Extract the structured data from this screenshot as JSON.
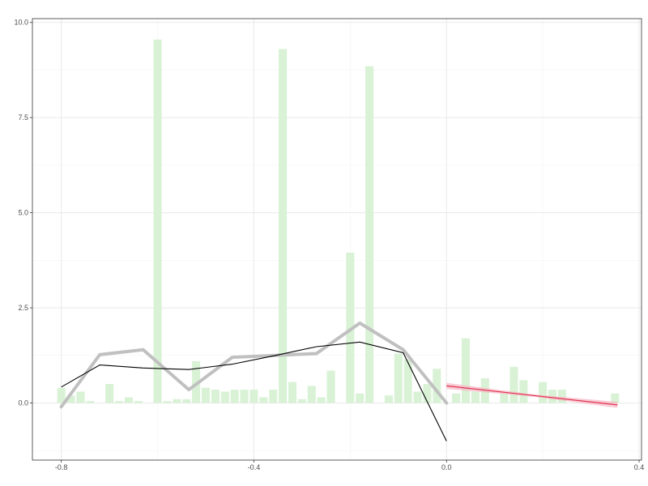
{
  "chart_data": {
    "type": "bar",
    "title": "",
    "xlabel": "",
    "ylabel": "",
    "xlim": [
      -0.86,
      0.405
    ],
    "ylim": [
      -1.5,
      10.1
    ],
    "x_ticks": [
      {
        "value": -0.8,
        "label": "-0.8"
      },
      {
        "value": -0.4,
        "label": "-0.4"
      },
      {
        "value": 0.0,
        "label": "0.0"
      },
      {
        "value": 0.4,
        "label": "0.4"
      }
    ],
    "y_ticks": [
      {
        "value": 0.0,
        "label": "0.0"
      },
      {
        "value": 2.5,
        "label": "2.5"
      },
      {
        "value": 5.0,
        "label": "5.0"
      },
      {
        "value": 7.5,
        "label": "7.5"
      },
      {
        "value": 10.0,
        "label": "10.0"
      }
    ],
    "grid": true,
    "bar_width": 0.017,
    "colors": {
      "bars": "#d9f2d6",
      "thick_line": "#c0c0c0",
      "black_line": "#000000",
      "red_line": "#e0334f",
      "red_band": "#f7b6c4",
      "grid": "#ebebeb",
      "panel_border": "#333333"
    },
    "series": [
      {
        "name": "bars",
        "type": "bar",
        "x": [
          -0.8,
          -0.78,
          -0.76,
          -0.74,
          -0.7,
          -0.68,
          -0.66,
          -0.64,
          -0.6,
          -0.58,
          -0.56,
          -0.54,
          -0.52,
          -0.5,
          -0.48,
          -0.46,
          -0.44,
          -0.42,
          -0.4,
          -0.38,
          -0.36,
          -0.34,
          -0.32,
          -0.3,
          -0.28,
          -0.26,
          -0.24,
          -0.2,
          -0.18,
          -0.16,
          -0.12,
          -0.1,
          -0.08,
          -0.06,
          -0.04,
          -0.02,
          0.02,
          0.04,
          0.06,
          0.08,
          0.12,
          0.14,
          0.16,
          0.2,
          0.22,
          0.24,
          0.35
        ],
        "values": [
          0.4,
          0.2,
          0.3,
          0.05,
          0.5,
          0.05,
          0.15,
          0.05,
          9.55,
          0.05,
          0.1,
          0.1,
          1.1,
          0.4,
          0.35,
          0.3,
          0.35,
          0.35,
          0.35,
          0.15,
          0.35,
          9.3,
          0.55,
          0.1,
          0.45,
          0.15,
          0.85,
          3.95,
          0.25,
          8.85,
          0.2,
          1.3,
          1.15,
          0.3,
          0.5,
          0.9,
          0.25,
          1.7,
          0.3,
          0.65,
          0.25,
          0.95,
          0.6,
          0.55,
          0.35,
          0.35,
          0.25
        ]
      },
      {
        "name": "thick gray line",
        "type": "line",
        "x": [
          -0.8,
          -0.72,
          -0.63,
          -0.535,
          -0.445,
          -0.355,
          -0.27,
          -0.18,
          -0.09,
          0.0
        ],
        "y": [
          -0.1,
          1.27,
          1.4,
          0.35,
          1.2,
          1.25,
          1.3,
          2.1,
          1.4,
          0.0
        ]
      },
      {
        "name": "black line",
        "type": "line",
        "x": [
          -0.8,
          -0.72,
          -0.63,
          -0.535,
          -0.445,
          -0.355,
          -0.27,
          -0.18,
          -0.09,
          0.0
        ],
        "y": [
          0.42,
          1.0,
          0.92,
          0.88,
          1.02,
          1.25,
          1.48,
          1.6,
          1.32,
          -1.0
        ]
      },
      {
        "name": "red fit line",
        "type": "line",
        "x": [
          0.0,
          0.355
        ],
        "y": [
          0.45,
          -0.05
        ]
      }
    ]
  }
}
